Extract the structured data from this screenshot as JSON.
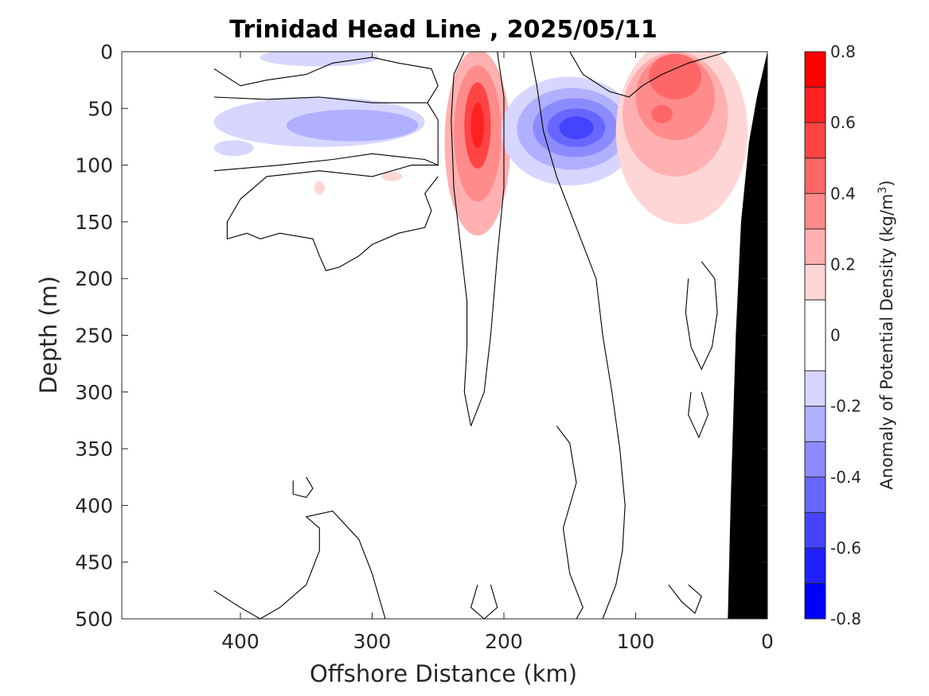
{
  "chart_data": {
    "type": "heatmap",
    "title": "Trinidad Head Line , 2025/05/11",
    "xlabel": "Offshore Distance (km)",
    "ylabel": "Depth (m)",
    "x_reversed": true,
    "y_reversed": true,
    "xlim": [
      490,
      0
    ],
    "ylim": [
      0,
      500
    ],
    "xticks": [
      400,
      300,
      200,
      100,
      0
    ],
    "yticks": [
      0,
      50,
      100,
      150,
      200,
      250,
      300,
      350,
      400,
      450,
      500
    ],
    "grid": false,
    "colorbar": {
      "label_main": "Anomaly of Potential Density (kg/m",
      "label_sup": "3",
      "label_end": ")",
      "range": [
        -0.8,
        0.8
      ],
      "ticks": [
        0.8,
        0.6,
        0.4,
        0.2,
        0,
        -0.2,
        -0.4,
        -0.6,
        -0.8
      ],
      "levels": [
        {
          "lo": 0.7,
          "hi": 0.8,
          "color": "#ff0000"
        },
        {
          "lo": 0.6,
          "hi": 0.7,
          "color": "#ff2121"
        },
        {
          "lo": 0.5,
          "hi": 0.6,
          "color": "#ff4444"
        },
        {
          "lo": 0.4,
          "hi": 0.5,
          "color": "#ff6767"
        },
        {
          "lo": 0.3,
          "hi": 0.4,
          "color": "#ff8b8b"
        },
        {
          "lo": 0.2,
          "hi": 0.3,
          "color": "#ffb0b0"
        },
        {
          "lo": 0.1,
          "hi": 0.2,
          "color": "#ffd6d6"
        },
        {
          "lo": -0.1,
          "hi": 0.1,
          "color": "#ffffff"
        },
        {
          "lo": -0.2,
          "hi": -0.1,
          "color": "#d6d6ff"
        },
        {
          "lo": -0.3,
          "hi": -0.2,
          "color": "#b0b0ff"
        },
        {
          "lo": -0.4,
          "hi": -0.3,
          "color": "#8b8bff"
        },
        {
          "lo": -0.5,
          "hi": -0.4,
          "color": "#6767ff"
        },
        {
          "lo": -0.6,
          "hi": -0.5,
          "color": "#4444ff"
        },
        {
          "lo": -0.7,
          "hi": -0.6,
          "color": "#2121ff"
        },
        {
          "lo": -0.8,
          "hi": -0.7,
          "color": "#0000ff"
        }
      ]
    },
    "anomalies": [
      {
        "name": "negative-surface-patch",
        "x": 340,
        "y": 5,
        "rx": 45,
        "ry": 8,
        "value": -0.2
      },
      {
        "name": "negative-offshore-band",
        "x": 340,
        "y": 62,
        "rx": 80,
        "ry": 22,
        "value": -0.2
      },
      {
        "name": "negative-offshore-core",
        "x": 315,
        "y": 65,
        "rx": 50,
        "ry": 14,
        "value": -0.3
      },
      {
        "name": "negative-far-edge",
        "x": 405,
        "y": 85,
        "rx": 15,
        "ry": 7,
        "value": -0.2
      },
      {
        "name": "positive-narrow-column-outer",
        "x": 220,
        "y": 80,
        "rx": 25,
        "ry": 82,
        "value": 0.2
      },
      {
        "name": "positive-narrow-column-mid",
        "x": 220,
        "y": 72,
        "rx": 18,
        "ry": 60,
        "value": 0.3
      },
      {
        "name": "positive-narrow-column-core",
        "x": 220,
        "y": 65,
        "rx": 10,
        "ry": 38,
        "value": 0.5
      },
      {
        "name": "positive-narrow-column-peak",
        "x": 220,
        "y": 65,
        "rx": 5,
        "ry": 20,
        "value": 0.6
      },
      {
        "name": "negative-eddy-outer",
        "x": 150,
        "y": 70,
        "rx": 52,
        "ry": 48,
        "value": -0.2
      },
      {
        "name": "negative-eddy-ring1",
        "x": 148,
        "y": 68,
        "rx": 42,
        "ry": 36,
        "value": -0.3
      },
      {
        "name": "negative-eddy-ring2",
        "x": 146,
        "y": 67,
        "rx": 32,
        "ry": 26,
        "value": -0.4
      },
      {
        "name": "negative-eddy-ring3",
        "x": 145,
        "y": 67,
        "rx": 22,
        "ry": 17,
        "value": -0.5
      },
      {
        "name": "negative-eddy-core",
        "x": 145,
        "y": 67,
        "rx": 13,
        "ry": 10,
        "value": -0.6
      },
      {
        "name": "positive-nearshore-outer",
        "x": 65,
        "y": 70,
        "rx": 50,
        "ry": 82,
        "value": 0.1
      },
      {
        "name": "positive-nearshore-mid",
        "x": 70,
        "y": 55,
        "rx": 40,
        "ry": 55,
        "value": 0.2
      },
      {
        "name": "positive-nearshore-inner",
        "x": 70,
        "y": 40,
        "rx": 30,
        "ry": 38,
        "value": 0.3
      },
      {
        "name": "positive-nearshore-core",
        "x": 70,
        "y": 22,
        "rx": 20,
        "ry": 20,
        "value": 0.4
      },
      {
        "name": "positive-nearshore-spot",
        "x": 80,
        "y": 55,
        "rx": 8,
        "ry": 8,
        "value": 0.4
      },
      {
        "name": "positive-small-blob",
        "x": 340,
        "y": 120,
        "rx": 4,
        "ry": 6,
        "value": 0.1
      },
      {
        "name": "positive-small-blob-2",
        "x": 285,
        "y": 110,
        "rx": 8,
        "ry": 4,
        "value": 0.1
      }
    ],
    "zero_contours": [
      {
        "name": "zero-contour-offshore-upper",
        "points": [
          [
            420,
            15
          ],
          [
            400,
            30
          ],
          [
            380,
            25
          ],
          [
            350,
            20
          ],
          [
            330,
            10
          ],
          [
            300,
            5
          ],
          [
            280,
            10
          ],
          [
            255,
            15
          ],
          [
            250,
            30
          ],
          [
            258,
            45
          ],
          [
            250,
            60
          ],
          [
            250,
            80
          ],
          [
            250,
            100
          ],
          [
            260,
            95
          ],
          [
            300,
            90
          ],
          [
            330,
            95
          ],
          [
            370,
            100
          ],
          [
            420,
            105
          ]
        ]
      },
      {
        "name": "zero-contour-offshore-lower",
        "points": [
          [
            420,
            40
          ],
          [
            380,
            42
          ],
          [
            340,
            40
          ],
          [
            300,
            45
          ],
          [
            258,
            45
          ]
        ]
      },
      {
        "name": "zero-contour-under-shelf",
        "points": [
          [
            250,
            100
          ],
          [
            270,
            100
          ],
          [
            300,
            110
          ],
          [
            340,
            105
          ],
          [
            380,
            110
          ],
          [
            400,
            130
          ],
          [
            410,
            150
          ],
          [
            410,
            165
          ],
          [
            395,
            160
          ],
          [
            385,
            165
          ],
          [
            370,
            160
          ],
          [
            345,
            165
          ],
          [
            340,
            180
          ],
          [
            335,
            193
          ],
          [
            325,
            190
          ],
          [
            310,
            180
          ],
          [
            300,
            170
          ],
          [
            280,
            160
          ],
          [
            260,
            155
          ],
          [
            255,
            140
          ],
          [
            260,
            125
          ],
          [
            250,
            110
          ]
        ]
      },
      {
        "name": "zero-contour-column-left",
        "points": [
          [
            230,
            0
          ],
          [
            238,
            20
          ],
          [
            240,
            60
          ],
          [
            238,
            120
          ],
          [
            232,
            180
          ],
          [
            228,
            220
          ],
          [
            228,
            260
          ],
          [
            230,
            300
          ],
          [
            225,
            330
          ]
        ]
      },
      {
        "name": "zero-contour-column-right",
        "points": [
          [
            225,
            330
          ],
          [
            215,
            300
          ],
          [
            210,
            250
          ],
          [
            205,
            180
          ],
          [
            200,
            120
          ],
          [
            200,
            40
          ],
          [
            205,
            0
          ]
        ]
      },
      {
        "name": "zero-contour-eddy-right",
        "points": [
          [
            180,
            0
          ],
          [
            175,
            30
          ],
          [
            170,
            70
          ],
          [
            160,
            110
          ],
          [
            150,
            140
          ],
          [
            140,
            170
          ],
          [
            130,
            200
          ],
          [
            125,
            250
          ],
          [
            118,
            300
          ],
          [
            112,
            350
          ],
          [
            108,
            400
          ],
          [
            110,
            440
          ],
          [
            115,
            470
          ],
          [
            125,
            500
          ]
        ]
      },
      {
        "name": "zero-contour-nearshore",
        "points": [
          [
            150,
            0
          ],
          [
            140,
            20
          ],
          [
            120,
            35
          ],
          [
            105,
            40
          ],
          [
            95,
            30
          ],
          [
            80,
            20
          ],
          [
            60,
            10
          ],
          [
            30,
            0
          ]
        ]
      },
      {
        "name": "zero-contour-mid-island-1",
        "points": [
          [
            50,
            185
          ],
          [
            40,
            200
          ],
          [
            38,
            230
          ],
          [
            42,
            260
          ],
          [
            50,
            280
          ],
          [
            58,
            260
          ],
          [
            62,
            230
          ],
          [
            60,
            200
          ]
        ]
      },
      {
        "name": "zero-contour-mid-island-2",
        "points": [
          [
            50,
            300
          ],
          [
            45,
            320
          ],
          [
            52,
            340
          ],
          [
            60,
            320
          ],
          [
            58,
            300
          ]
        ]
      },
      {
        "name": "zero-contour-deep-left",
        "points": [
          [
            420,
            475
          ],
          [
            400,
            490
          ],
          [
            385,
            500
          ],
          [
            370,
            490
          ],
          [
            350,
            470
          ],
          [
            340,
            440
          ],
          [
            340,
            420
          ],
          [
            350,
            410
          ],
          [
            330,
            405
          ],
          [
            310,
            430
          ],
          [
            300,
            460
          ],
          [
            295,
            480
          ],
          [
            290,
            500
          ]
        ]
      },
      {
        "name": "zero-contour-deep-blob",
        "points": [
          [
            350,
            375
          ],
          [
            345,
            385
          ],
          [
            350,
            393
          ],
          [
            360,
            390
          ],
          [
            360,
            378
          ]
        ]
      },
      {
        "name": "zero-contour-deep-mid",
        "points": [
          [
            210,
            470
          ],
          [
            205,
            490
          ],
          [
            215,
            500
          ],
          [
            225,
            490
          ],
          [
            220,
            470
          ]
        ]
      },
      {
        "name": "zero-contour-deep-right",
        "points": [
          [
            160,
            330
          ],
          [
            150,
            345
          ],
          [
            145,
            380
          ],
          [
            155,
            420
          ],
          [
            150,
            460
          ],
          [
            140,
            490
          ],
          [
            145,
            500
          ]
        ]
      },
      {
        "name": "zero-contour-deep-edge",
        "points": [
          [
            75,
            470
          ],
          [
            65,
            485
          ],
          [
            55,
            495
          ],
          [
            50,
            480
          ],
          [
            60,
            470
          ]
        ]
      }
    ],
    "bathymetry": {
      "name": "seafloor-shelf",
      "color": "#000000",
      "points": [
        [
          0,
          0
        ],
        [
          0,
          500
        ],
        [
          30,
          500
        ],
        [
          28,
          400
        ],
        [
          24,
          250
        ],
        [
          20,
          150
        ],
        [
          14,
          80
        ],
        [
          8,
          40
        ],
        [
          0,
          0
        ]
      ]
    }
  }
}
